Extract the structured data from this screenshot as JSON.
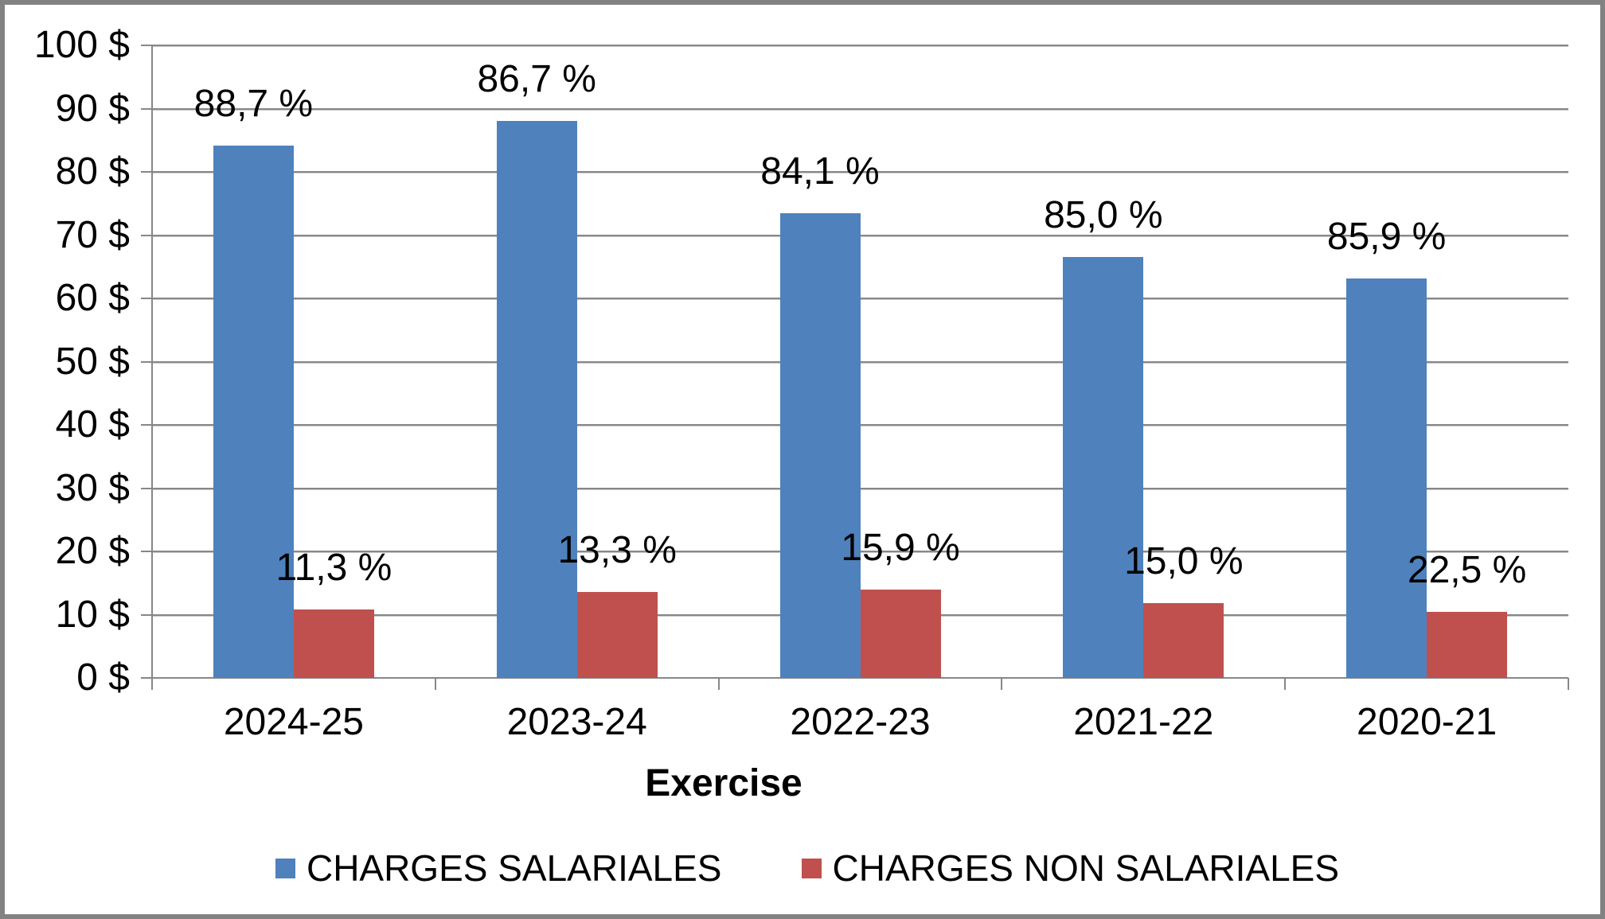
{
  "chart_data": {
    "type": "bar",
    "categories": [
      "2024-25",
      "2023-24",
      "2022-23",
      "2021-22",
      "2020-21"
    ],
    "series": [
      {
        "name": "CHARGES SALARIALES",
        "color": "#4F81BD",
        "values": [
          84.2,
          88.1,
          73.5,
          66.6,
          63.2
        ],
        "data_labels": [
          "88,7 %",
          "86,7 %",
          "84,1 %",
          "85,0 %",
          "85,9 %"
        ]
      },
      {
        "name": "CHARGES NON SALARIALES",
        "color": "#C0504D",
        "values": [
          10.8,
          13.6,
          14.0,
          11.8,
          10.4
        ],
        "data_labels": [
          "11,3 %",
          "13,3 %",
          "15,9 %",
          "15,0 %",
          "22,5 %"
        ]
      }
    ],
    "xlabel": "Exercise",
    "ylabel": "",
    "y_axis": {
      "min": 0,
      "max": 100,
      "step": 10,
      "unit": "$",
      "tick_labels": [
        "100 $",
        "90 $",
        "80 $",
        "70 $",
        "60 $",
        "50 $",
        "40 $",
        "30 $",
        "20 $",
        "10 $",
        "0 $"
      ]
    },
    "grid": true,
    "legend_position": "bottom"
  },
  "colors": {
    "background": "#FFFFFF",
    "frame": "#828282",
    "gridline": "#878787",
    "axis": "#878787",
    "text": "#000000",
    "series_blue": "#4F81BD",
    "series_red": "#C0504D"
  }
}
